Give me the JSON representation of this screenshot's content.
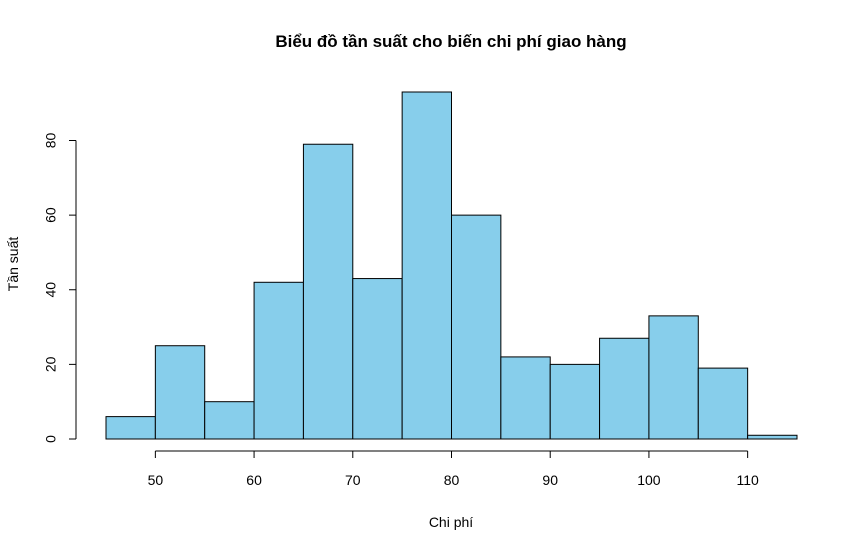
{
  "chart_data": {
    "type": "bar",
    "title": "Biểu đồ tần suất cho biến chi phí giao hàng",
    "xlabel": "Chi phí",
    "ylabel": "Tần suất",
    "bin_edges": [
      45,
      50,
      55,
      60,
      65,
      70,
      75,
      80,
      85,
      90,
      95,
      100,
      105,
      110,
      115
    ],
    "values": [
      6,
      25,
      10,
      42,
      79,
      43,
      93,
      60,
      22,
      20,
      27,
      33,
      19,
      1
    ],
    "xticks": [
      50,
      60,
      70,
      80,
      90,
      100,
      110
    ],
    "yticks": [
      0,
      20,
      40,
      60,
      80
    ],
    "xlim": [
      45,
      115
    ],
    "ylim": [
      0,
      93
    ],
    "grid": false,
    "bar_color": "#87CEEB",
    "border_color": "#000000"
  }
}
